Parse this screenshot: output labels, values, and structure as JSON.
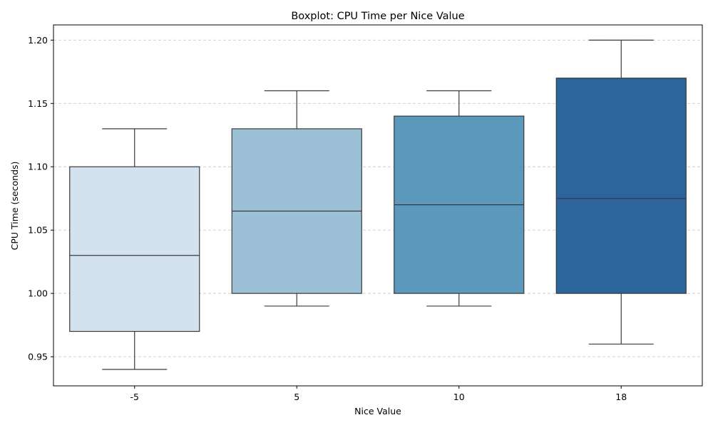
{
  "chart_data": {
    "type": "boxplot",
    "title": "Boxplot: CPU Time per Nice Value",
    "xlabel": "Nice Value",
    "ylabel": "CPU Time (seconds)",
    "categories": [
      "-5",
      "5",
      "10",
      "18"
    ],
    "yticks": [
      "0.95",
      "1.00",
      "1.05",
      "1.10",
      "1.15",
      "1.20"
    ],
    "ylim": [
      0.927,
      1.212
    ],
    "grid": "y-dashed",
    "boxes": [
      {
        "category": "-5",
        "whisker_low": 0.94,
        "q1": 0.97,
        "median": 1.03,
        "q3": 1.1,
        "whisker_high": 1.13,
        "color": "#d4e2f0"
      },
      {
        "category": "5",
        "whisker_low": 0.99,
        "q1": 1.0,
        "median": 1.065,
        "q3": 1.13,
        "whisker_high": 1.16,
        "color": "#9cc1d7"
      },
      {
        "category": "10",
        "whisker_low": 0.99,
        "q1": 1.0,
        "median": 1.07,
        "q3": 1.14,
        "whisker_high": 1.16,
        "color": "#5c97bc"
      },
      {
        "category": "18",
        "whisker_low": 0.96,
        "q1": 1.0,
        "median": 1.075,
        "q3": 1.17,
        "whisker_high": 1.2,
        "color": "#2b659c"
      }
    ]
  }
}
